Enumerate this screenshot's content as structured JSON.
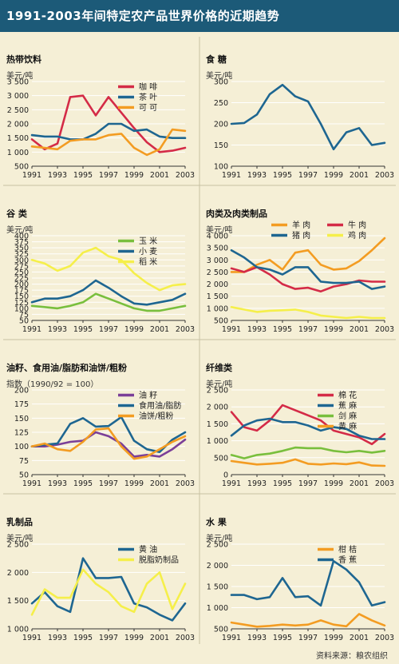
{
  "page": {
    "title": "1991-2003年间特定农产品世界价格的近期趋势",
    "source": "资料来源：粮农组织"
  },
  "chart_data": [
    {
      "type": "line",
      "title": "热带饮料",
      "ylabel": "美元/吨",
      "x": [
        1991,
        1992,
        1993,
        1994,
        1995,
        1996,
        1997,
        1998,
        1999,
        2000,
        2001,
        2002,
        2003
      ],
      "xticks": [
        "1991",
        "1993",
        "1995",
        "1997",
        "1999",
        "2001",
        "2003"
      ],
      "ylim": [
        500,
        3500
      ],
      "yticks": [
        "500",
        "1 000",
        "1 500",
        "2 000",
        "2 500",
        "3 000",
        "3 500"
      ],
      "ytick_values": [
        500,
        1000,
        1500,
        2000,
        2500,
        3000,
        3500
      ],
      "legend_position": "top-right",
      "legend_cols": 1,
      "series": [
        {
          "name": "咖 啡",
          "color": "#d42b47",
          "values": [
            1450,
            1100,
            1300,
            2950,
            3000,
            2300,
            2950,
            2400,
            1850,
            1350,
            1000,
            1050,
            1150
          ]
        },
        {
          "name": "茶 叶",
          "color": "#1e6691",
          "values": [
            1600,
            1550,
            1550,
            1450,
            1450,
            1650,
            2000,
            2000,
            1750,
            1800,
            1550,
            1500,
            1500
          ]
        },
        {
          "name": "可 可",
          "color": "#f39c22",
          "values": [
            1200,
            1150,
            1100,
            1400,
            1450,
            1450,
            1600,
            1650,
            1150,
            900,
            1100,
            1800,
            1750
          ]
        }
      ]
    },
    {
      "type": "line",
      "title": "食 糖",
      "ylabel": "美元/吨",
      "x": [
        1991,
        1992,
        1993,
        1994,
        1995,
        1996,
        1997,
        1998,
        1999,
        2000,
        2001,
        2002,
        2003
      ],
      "xticks": [
        "1991",
        "1993",
        "1995",
        "1997",
        "1999",
        "2001",
        "2003"
      ],
      "ylim": [
        100,
        300
      ],
      "yticks": [
        "100",
        "150",
        "200",
        "250",
        "300"
      ],
      "ytick_values": [
        100,
        150,
        200,
        250,
        300
      ],
      "legend_position": "none",
      "legend_cols": 1,
      "series": [
        {
          "name": "",
          "color": "#1e6691",
          "values": [
            200,
            202,
            222,
            270,
            292,
            265,
            253,
            200,
            140,
            180,
            190,
            150,
            155
          ]
        }
      ]
    },
    {
      "type": "line",
      "title": "谷 类",
      "ylabel": "美元/吨",
      "x": [
        1991,
        1992,
        1993,
        1994,
        1995,
        1996,
        1997,
        1998,
        1999,
        2000,
        2001,
        2002,
        2003
      ],
      "xticks": [
        "1991",
        "1993",
        "1995",
        "1997",
        "1999",
        "2001",
        "2003"
      ],
      "ylim": [
        50,
        400
      ],
      "yticks": [
        "50",
        "75",
        "100",
        "125",
        "150",
        "175",
        "200",
        "225",
        "250",
        "275",
        "300",
        "325",
        "350",
        "375",
        "400"
      ],
      "ytick_values": [
        50,
        75,
        100,
        125,
        150,
        175,
        200,
        225,
        250,
        275,
        300,
        325,
        350,
        375,
        400
      ],
      "legend_position": "top-right",
      "legend_cols": 1,
      "series": [
        {
          "name": "玉 米",
          "color": "#79bf3d",
          "values": [
            110,
            105,
            100,
            110,
            125,
            160,
            140,
            120,
            100,
            90,
            90,
            100,
            110
          ]
        },
        {
          "name": "小 麦",
          "color": "#1e6691",
          "values": [
            125,
            140,
            140,
            150,
            175,
            215,
            185,
            150,
            120,
            115,
            125,
            135,
            160
          ]
        },
        {
          "name": "稻 米",
          "color": "#f5ef4a",
          "values": [
            300,
            285,
            255,
            275,
            330,
            350,
            315,
            300,
            245,
            205,
            175,
            195,
            200
          ]
        }
      ]
    },
    {
      "type": "line",
      "title": "肉类及肉类制品",
      "ylabel": "美元/吨",
      "x": [
        1991,
        1992,
        1993,
        1994,
        1995,
        1996,
        1997,
        1998,
        1999,
        2000,
        2001,
        2002,
        2003
      ],
      "xticks": [
        "1991",
        "1993",
        "1995",
        "1997",
        "1999",
        "2001",
        "2003"
      ],
      "ylim": [
        500,
        4000
      ],
      "yticks": [
        "500",
        "1 000",
        "1 500",
        "2 000",
        "2 500",
        "3 000",
        "3 500",
        "4 000"
      ],
      "ytick_values": [
        500,
        1000,
        1500,
        2000,
        2500,
        3000,
        3500,
        4000
      ],
      "legend_position": "top-right",
      "legend_cols": 2,
      "series": [
        {
          "name": "羊 肉",
          "color": "#f39c22",
          "values": [
            2500,
            2500,
            2800,
            3000,
            2600,
            3300,
            3400,
            2800,
            2600,
            2650,
            2950,
            3400,
            3900
          ]
        },
        {
          "name": "牛 肉",
          "color": "#d42b47",
          "values": [
            2650,
            2500,
            2700,
            2400,
            2000,
            1800,
            1850,
            1700,
            1900,
            2000,
            2150,
            2100,
            2100
          ]
        },
        {
          "name": "猪 肉",
          "color": "#1e6691",
          "values": [
            3400,
            3100,
            2700,
            2600,
            2400,
            2700,
            2700,
            2100,
            2050,
            2050,
            2100,
            1800,
            1900
          ]
        },
        {
          "name": "鸡 肉",
          "color": "#f5ef4a",
          "values": [
            1050,
            950,
            850,
            900,
            920,
            950,
            850,
            700,
            650,
            600,
            650,
            600,
            600
          ]
        }
      ]
    },
    {
      "type": "line",
      "title": "油籽、食用油/脂肪和油饼/粗粉",
      "ylabel": "指数（1990/92 = 100）",
      "x": [
        1991,
        1992,
        1993,
        1994,
        1995,
        1996,
        1997,
        1998,
        1999,
        2000,
        2001,
        2002,
        2003
      ],
      "xticks": [
        "1991",
        "1993",
        "1995",
        "1997",
        "1999",
        "2001",
        "2003"
      ],
      "ylim": [
        50,
        200
      ],
      "yticks": [
        "50",
        "75",
        "100",
        "125",
        "150",
        "175",
        "200"
      ],
      "ytick_values": [
        50,
        75,
        100,
        125,
        150,
        175,
        200
      ],
      "legend_position": "top-right",
      "legend_cols": 1,
      "series": [
        {
          "name": "油 籽",
          "color": "#7b3f98",
          "values": [
            100,
            100,
            103,
            108,
            110,
            125,
            118,
            105,
            82,
            85,
            82,
            95,
            112
          ]
        },
        {
          "name": "食用油/脂肪",
          "color": "#1e6691",
          "values": [
            100,
            103,
            105,
            140,
            150,
            135,
            136,
            152,
            110,
            95,
            90,
            112,
            125
          ]
        },
        {
          "name": "油饼/粗粉",
          "color": "#f39c22",
          "values": [
            100,
            105,
            95,
            92,
            108,
            130,
            132,
            100,
            78,
            82,
            95,
            108,
            118
          ]
        }
      ]
    },
    {
      "type": "line",
      "title": "纤维类",
      "ylabel": "美元/吨",
      "x": [
        1991,
        1992,
        1993,
        1994,
        1995,
        1996,
        1997,
        1998,
        1999,
        2000,
        2001,
        2002,
        2003
      ],
      "xticks": [
        "1991",
        "1993",
        "1995",
        "1997",
        "1999",
        "2001",
        "2003"
      ],
      "ylim": [
        0,
        2500
      ],
      "yticks": [
        "0",
        "500",
        "1 000",
        "1 500",
        "2 000",
        "2 500"
      ],
      "ytick_values": [
        0,
        500,
        1000,
        1500,
        2000,
        2500
      ],
      "legend_position": "top-right",
      "legend_cols": 1,
      "series": [
        {
          "name": "棉 花",
          "color": "#d42b47",
          "values": [
            1850,
            1400,
            1300,
            1600,
            2050,
            1900,
            1750,
            1600,
            1300,
            1200,
            1100,
            900,
            1200
          ]
        },
        {
          "name": "蕉 麻",
          "color": "#1e6691",
          "values": [
            1150,
            1450,
            1600,
            1650,
            1550,
            1550,
            1450,
            1300,
            1400,
            1350,
            1150,
            1050,
            1050
          ]
        },
        {
          "name": "剑 麻",
          "color": "#79bf3d",
          "values": [
            580,
            480,
            580,
            620,
            700,
            800,
            780,
            780,
            700,
            660,
            700,
            650,
            700
          ]
        },
        {
          "name": "黄 麻",
          "color": "#f39c22",
          "values": [
            400,
            350,
            300,
            320,
            350,
            450,
            320,
            300,
            330,
            310,
            360,
            270,
            260
          ]
        }
      ]
    },
    {
      "type": "line",
      "title": "乳制品",
      "ylabel": "美元/吨",
      "x": [
        1991,
        1992,
        1993,
        1994,
        1995,
        1996,
        1997,
        1998,
        1999,
        2000,
        2001,
        2002,
        2003
      ],
      "xticks": [
        "1991",
        "1993",
        "1995",
        "1997",
        "1999",
        "2001",
        "2003"
      ],
      "ylim": [
        1000,
        2500
      ],
      "yticks": [
        "1 000",
        "1 500",
        "2 000",
        "2 500"
      ],
      "ytick_values": [
        1000,
        1500,
        2000,
        2500
      ],
      "legend_position": "top-right",
      "legend_cols": 1,
      "series": [
        {
          "name": "黄 油",
          "color": "#1e6691",
          "values": [
            1450,
            1650,
            1400,
            1300,
            2250,
            1900,
            1900,
            1920,
            1450,
            1380,
            1250,
            1150,
            1450
          ]
        },
        {
          "name": "脱脂奶制品",
          "color": "#f5ef4a",
          "values": [
            1250,
            1700,
            1550,
            1550,
            2050,
            1800,
            1650,
            1400,
            1300,
            1800,
            2000,
            1350,
            1800
          ]
        }
      ]
    },
    {
      "type": "line",
      "title": "水 果",
      "ylabel": "美元/吨",
      "x": [
        1991,
        1992,
        1993,
        1994,
        1995,
        1996,
        1997,
        1998,
        1999,
        2000,
        2001,
        2002,
        2003
      ],
      "xticks": [
        "1991",
        "1993",
        "1995",
        "1997",
        "1999",
        "2001",
        "2003"
      ],
      "ylim": [
        500,
        2500
      ],
      "yticks": [
        "500",
        "1 000",
        "1 500",
        "2 000",
        "2 500"
      ],
      "ytick_values": [
        500,
        1000,
        1500,
        2000,
        2500
      ],
      "legend_position": "top-right",
      "legend_cols": 1,
      "series": [
        {
          "name": "柑 桔",
          "color": "#f39c22",
          "values": [
            650,
            600,
            550,
            570,
            600,
            580,
            600,
            700,
            600,
            560,
            850,
            700,
            580
          ]
        },
        {
          "name": "香 蕉",
          "color": "#1e6691",
          "values": [
            1300,
            1300,
            1200,
            1250,
            1700,
            1250,
            1270,
            1050,
            2100,
            1900,
            1600,
            1050,
            1130
          ]
        }
      ]
    }
  ]
}
